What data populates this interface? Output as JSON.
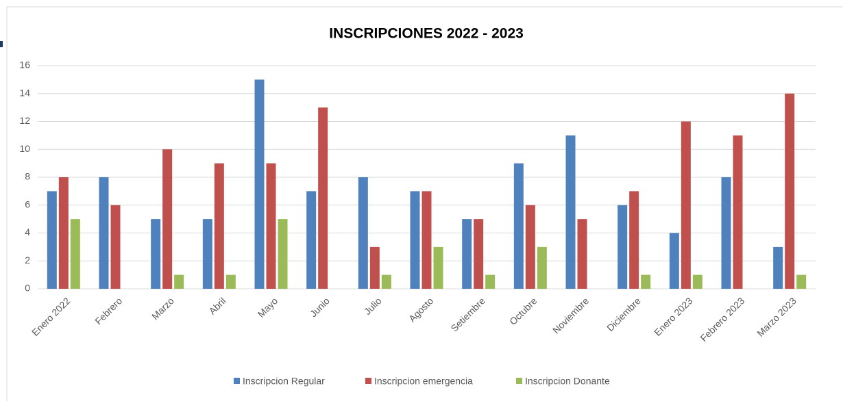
{
  "chart_data": {
    "type": "bar",
    "title": "INSCRIPCIONES 2022 - 2023",
    "categories": [
      "Enero 2022",
      "Febrero",
      "Marzo",
      "Abril",
      "Mayo",
      "Junio",
      "Julio",
      "Agosto",
      "Setiembre",
      "Octubre",
      "Noviembre",
      "Diciembre",
      "Enero 2023",
      "Febrero 2023",
      "Marzo 2023"
    ],
    "series": [
      {
        "name": "Inscripcion Regular",
        "color": "#4f81bd",
        "values": [
          7,
          8,
          5,
          5,
          15,
          7,
          8,
          7,
          5,
          9,
          11,
          6,
          4,
          8,
          3
        ]
      },
      {
        "name": "Inscripcion emergencia",
        "color": "#c0504d",
        "values": [
          8,
          6,
          10,
          9,
          9,
          13,
          3,
          7,
          5,
          6,
          5,
          7,
          12,
          11,
          14
        ]
      },
      {
        "name": "Inscripcion Donante",
        "color": "#9bbb59",
        "values": [
          5,
          0,
          1,
          1,
          5,
          0,
          1,
          3,
          1,
          3,
          0,
          1,
          1,
          0,
          1
        ]
      }
    ],
    "ylim": [
      0,
      16
    ],
    "yticks": [
      0,
      2,
      4,
      6,
      8,
      10,
      12,
      14,
      16
    ],
    "grid": true,
    "legend": "bottom"
  }
}
